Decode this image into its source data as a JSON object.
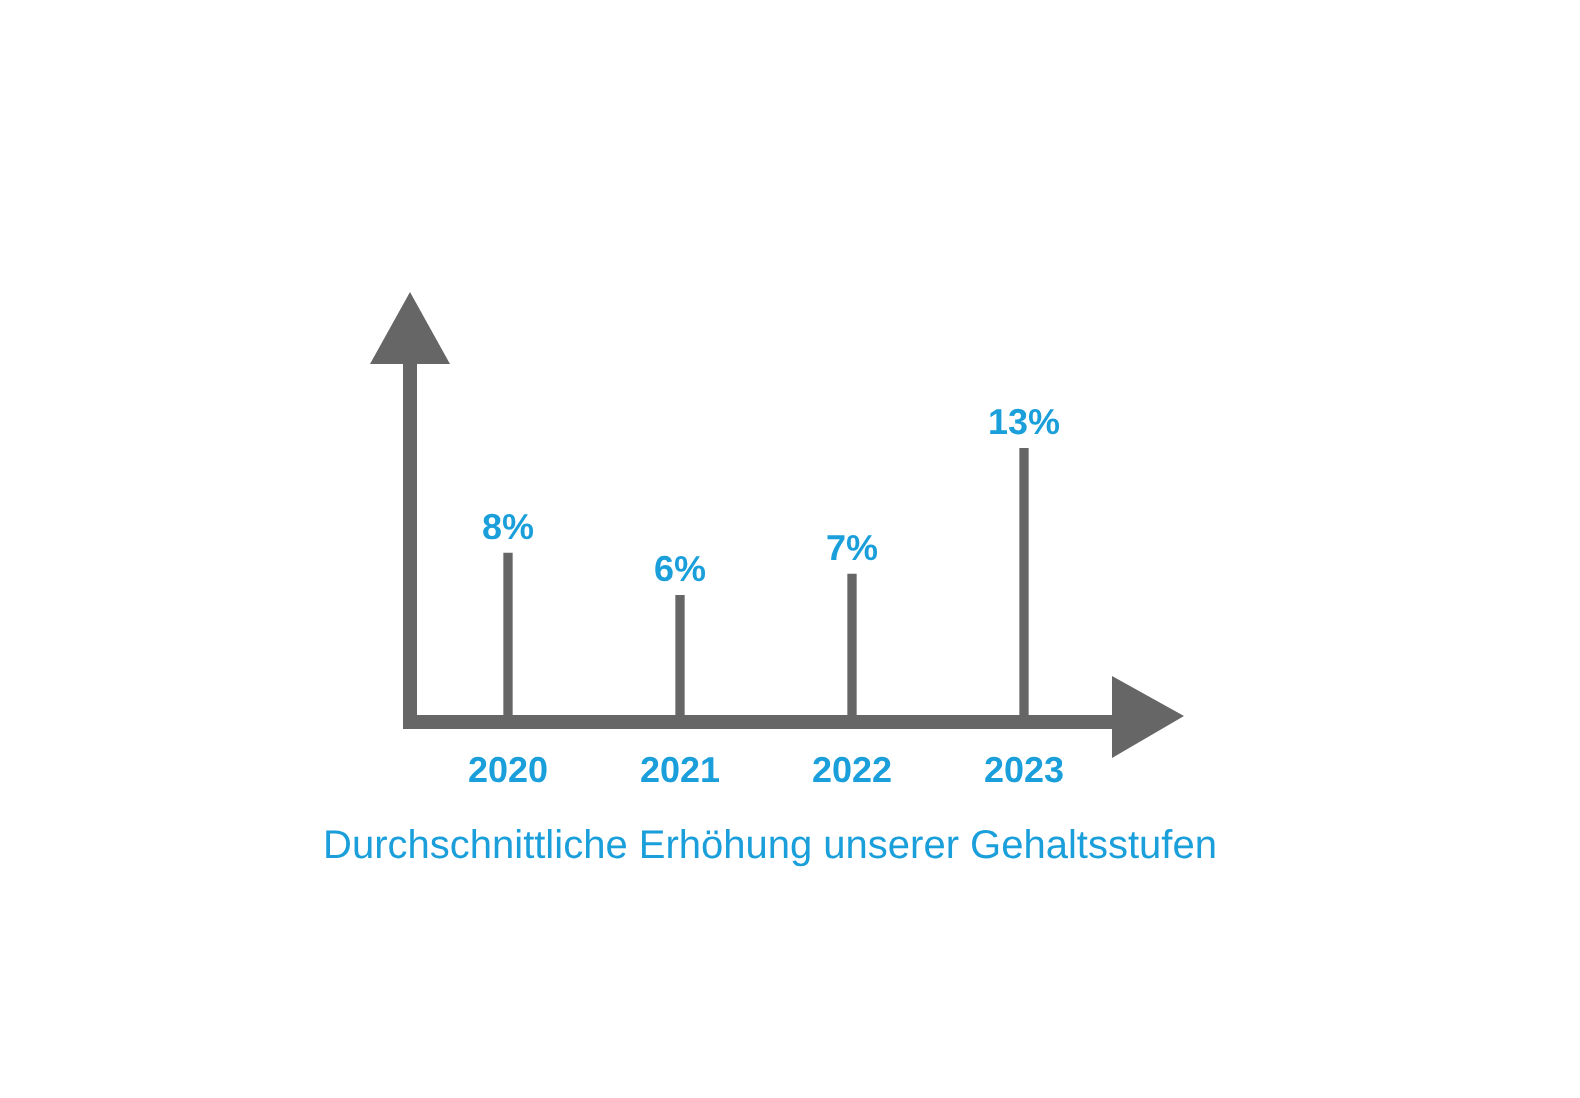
{
  "chart_data": {
    "type": "bar",
    "title": "Durchschnittliche Erhöhung unserer Gehaltsstufen",
    "categories": [
      "2020",
      "2021",
      "2022",
      "2023"
    ],
    "values": [
      8,
      6,
      7,
      13
    ],
    "value_labels": [
      "8%",
      "6%",
      "7%",
      "13%"
    ],
    "color": "#666666"
  }
}
